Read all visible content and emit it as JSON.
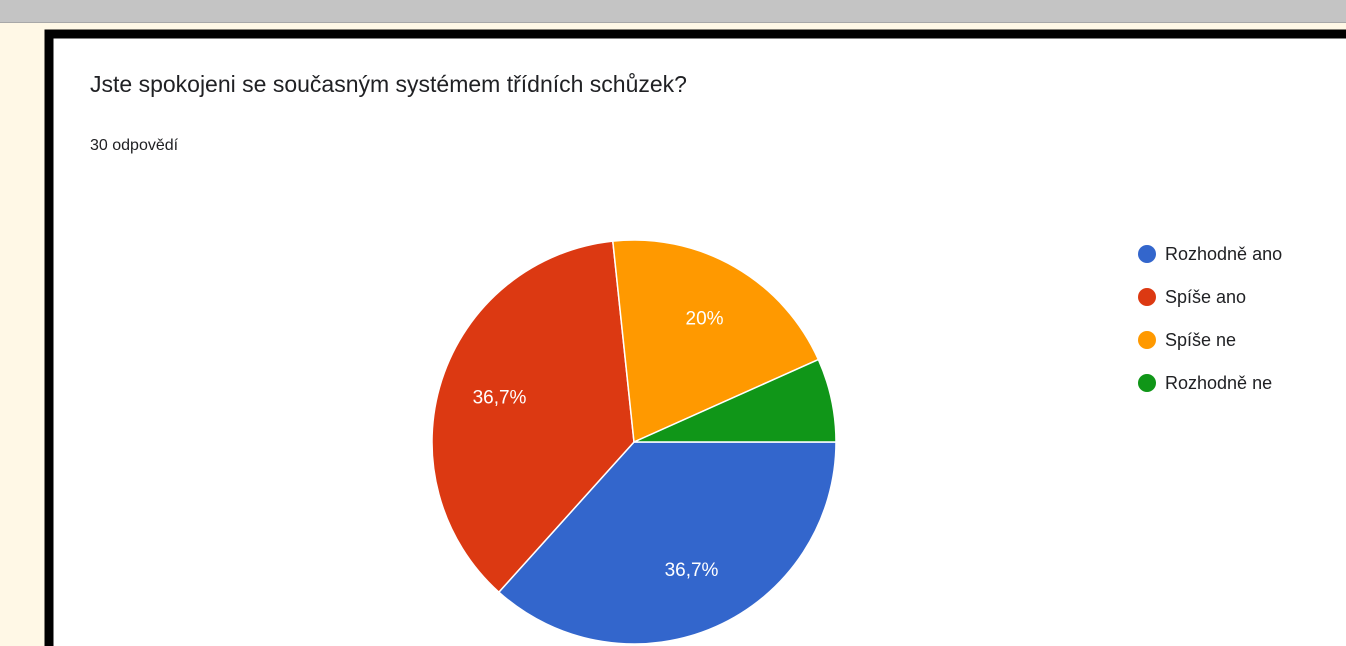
{
  "chart_data": {
    "type": "pie",
    "title": "Jste spokojeni se současným systémem třídních schůzek?",
    "subtitle": "30 odpovědí",
    "categories": [
      "Rozhodně ano",
      "Spíše ano",
      "Spíše ne",
      "Rozhodně ne"
    ],
    "values": [
      36.7,
      36.7,
      20,
      6.7
    ],
    "value_labels": [
      "36,7%",
      "36,7%",
      "20%",
      null
    ],
    "colors": [
      "#3366cc",
      "#dc3912",
      "#ff9900",
      "#109618"
    ],
    "legend": "right"
  }
}
